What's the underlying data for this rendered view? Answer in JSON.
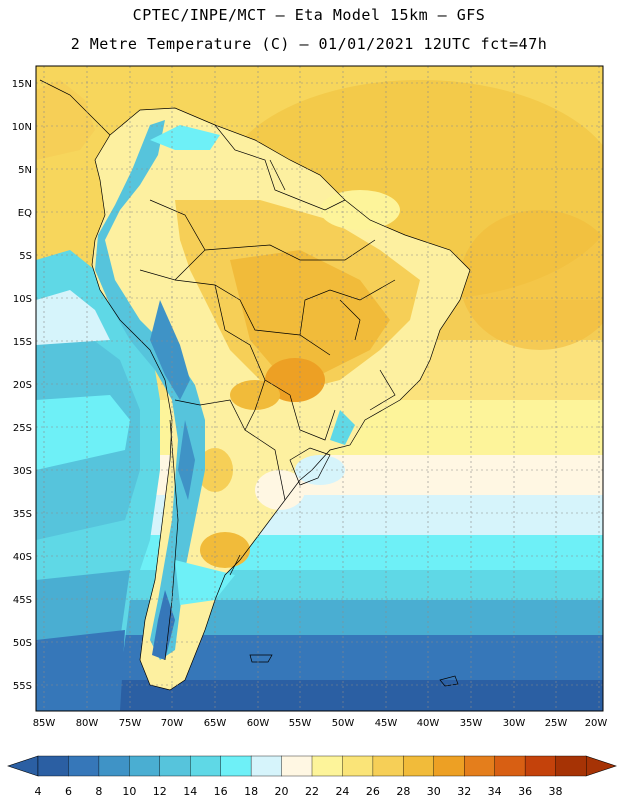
{
  "header": {
    "line1": "CPTEC/INPE/MCT –  Eta Model 15km – GFS",
    "line2": "2 Metre Temperature (C) – 01/01/2021 12UTC fct=47h"
  },
  "axes": {
    "lat_labels": [
      "15N",
      "10N",
      "5N",
      "EQ",
      "5S",
      "10S",
      "15S",
      "20S",
      "25S",
      "30S",
      "35S",
      "40S",
      "45S",
      "50S",
      "55S"
    ],
    "lon_labels": [
      "85W",
      "80W",
      "75W",
      "70W",
      "65W",
      "60W",
      "55W",
      "50W",
      "45W",
      "40W",
      "35W",
      "30W",
      "25W",
      "20W"
    ]
  },
  "colorbar": {
    "labels": [
      "4",
      "6",
      "8",
      "10",
      "12",
      "14",
      "16",
      "18",
      "20",
      "22",
      "24",
      "26",
      "28",
      "30",
      "32",
      "34",
      "36",
      "38"
    ],
    "colors": [
      "#2b5fa3",
      "#3677b9",
      "#3f93c6",
      "#4aaed2",
      "#56c4dc",
      "#5fd8e6",
      "#6ef0f7",
      "#d6f4fb",
      "#fff7e3",
      "#fdf49a",
      "#fae478",
      "#f6cf57",
      "#f1bb3a",
      "#eda024",
      "#e47e1c",
      "#d85f13",
      "#c4420b",
      "#a63305"
    ],
    "left_arrow_color": "#2b5fa3",
    "right_arrow_color": "#a63305"
  }
}
